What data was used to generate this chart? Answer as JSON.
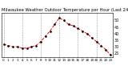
{
  "title": "Milwaukee Weather Outdoor Temperature per Hour (Last 24 Hours)",
  "hours": [
    0,
    1,
    2,
    3,
    4,
    5,
    6,
    7,
    8,
    9,
    10,
    11,
    12,
    13,
    14,
    15,
    16,
    17,
    18,
    19,
    20,
    21,
    22,
    23
  ],
  "temps": [
    32,
    31,
    30,
    30,
    29,
    29,
    30,
    31,
    34,
    38,
    42,
    47,
    52,
    50,
    47,
    46,
    44,
    42,
    40,
    37,
    34,
    31,
    28,
    24
  ],
  "line_color": "#ff0000",
  "marker_color": "#000000",
  "grid_color": "#999999",
  "bg_color": "#ffffff",
  "ylim": [
    22,
    56
  ],
  "yticks": [
    25,
    30,
    35,
    40,
    45,
    50
  ],
  "ylabel_fontsize": 3.5,
  "title_fontsize": 3.8,
  "xtick_fontsize": 3.0,
  "vline_positions": [
    0,
    4,
    8,
    12,
    16,
    20
  ],
  "xtick_labels": [
    "0",
    "1",
    "2",
    "3",
    "4",
    "5",
    "6",
    "7",
    "8",
    "9",
    "10",
    "11",
    "12",
    "13",
    "14",
    "15",
    "16",
    "17",
    "18",
    "19",
    "20",
    "21",
    "22",
    "23"
  ]
}
